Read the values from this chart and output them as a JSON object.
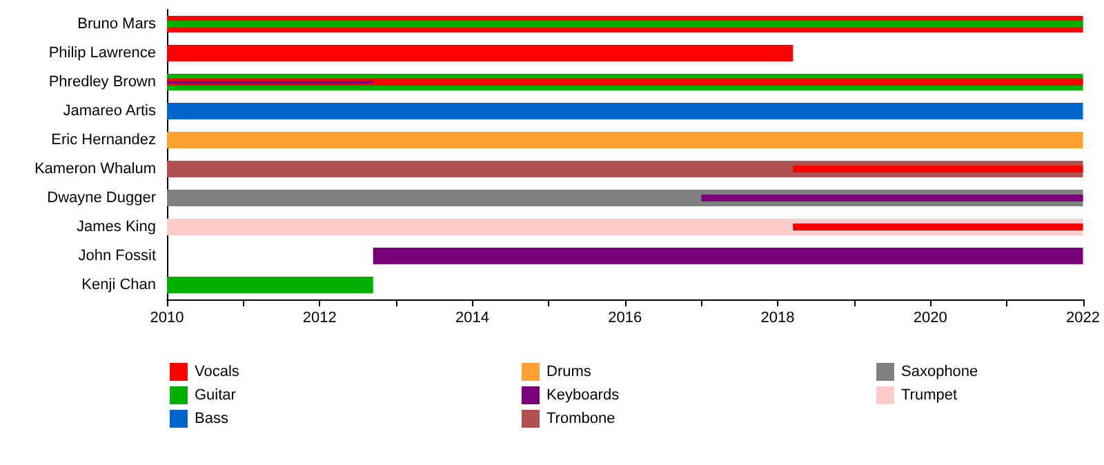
{
  "chart_data": {
    "type": "bar",
    "orientation": "horizontal",
    "categories": [
      "Bruno Mars",
      "Philip Lawrence",
      "Phredley Brown",
      "Jamareo Artis",
      "Eric Hernandez",
      "Kameron Whalum",
      "Dwayne Dugger",
      "James King",
      "John Fossit",
      "Kenji Chan"
    ],
    "series": [
      {
        "name": "Vocals",
        "color": "#ff0000",
        "values": [
          12,
          8.2,
          null,
          null,
          null,
          null,
          null,
          null,
          null,
          null
        ],
        "base": [
          2010,
          2010,
          null,
          null,
          null,
          null,
          null,
          null,
          null,
          null
        ]
      },
      {
        "name": "Guitar",
        "color": "#00b000",
        "values": [
          12,
          null,
          12,
          null,
          null,
          null,
          null,
          null,
          null,
          2.7
        ],
        "base": [
          2010,
          null,
          2010,
          null,
          null,
          null,
          null,
          null,
          null,
          2010
        ]
      },
      {
        "name": "Bass",
        "color": "#0066cc",
        "values": [
          null,
          null,
          null,
          12,
          null,
          null,
          null,
          null,
          null,
          null
        ],
        "base": [
          null,
          null,
          null,
          2010,
          null,
          null,
          null,
          null,
          null,
          null
        ]
      },
      {
        "name": "Drums",
        "color": "#ffa030",
        "values": [
          null,
          null,
          null,
          null,
          12,
          null,
          null,
          null,
          null,
          null
        ],
        "base": [
          null,
          null,
          null,
          null,
          2010,
          null,
          null,
          null,
          null,
          null
        ]
      },
      {
        "name": "Keyboards",
        "color": "#7a007a",
        "values": [
          null,
          null,
          null,
          null,
          null,
          null,
          null,
          null,
          9.3,
          null
        ],
        "base": [
          null,
          null,
          null,
          null,
          null,
          null,
          null,
          null,
          2012.7,
          null
        ]
      },
      {
        "name": "Trombone",
        "color": "#b05050",
        "values": [
          null,
          null,
          null,
          null,
          null,
          12,
          null,
          null,
          null,
          null
        ],
        "base": [
          null,
          null,
          null,
          null,
          null,
          2010,
          null,
          null,
          null,
          null
        ]
      },
      {
        "name": "Saxophone",
        "color": "#808080",
        "values": [
          null,
          null,
          null,
          null,
          null,
          null,
          12,
          null,
          null,
          null
        ],
        "base": [
          null,
          null,
          null,
          null,
          null,
          null,
          2010,
          null,
          null,
          null
        ]
      },
      {
        "name": "Trumpet",
        "color": "#ffcccc",
        "values": [
          null,
          null,
          null,
          null,
          null,
          null,
          null,
          12,
          null,
          null
        ],
        "base": [
          null,
          null,
          null,
          null,
          null,
          null,
          null,
          2010,
          null,
          null
        ]
      },
      {
        "color": "#ff0000",
        "values": [
          null,
          null,
          12,
          null,
          null,
          3.8,
          null,
          3.8,
          null,
          null
        ],
        "base": [
          null,
          null,
          2010,
          null,
          null,
          2018.2,
          null,
          2018.2,
          null,
          null
        ]
      },
      {
        "color": "#7a007a",
        "values": [
          null,
          null,
          2.7,
          null,
          null,
          null,
          5,
          null,
          null,
          null
        ],
        "base": [
          null,
          null,
          2010,
          null,
          null,
          null,
          2017,
          null,
          null,
          null
        ]
      }
    ],
    "xlim": [
      2010,
      2022
    ],
    "xticks": [
      2010,
      {
        "value": 2011,
        "label": null
      },
      2012,
      {
        "value": 2013,
        "label": null
      },
      2014,
      {
        "value": 2015,
        "label": null
      },
      2016,
      {
        "value": 2017,
        "label": null
      },
      2018,
      {
        "value": 2019,
        "label": null
      },
      2020,
      {
        "value": 2021,
        "label": null
      },
      2022
    ],
    "grid": false,
    "legend": "bottom left"
  }
}
